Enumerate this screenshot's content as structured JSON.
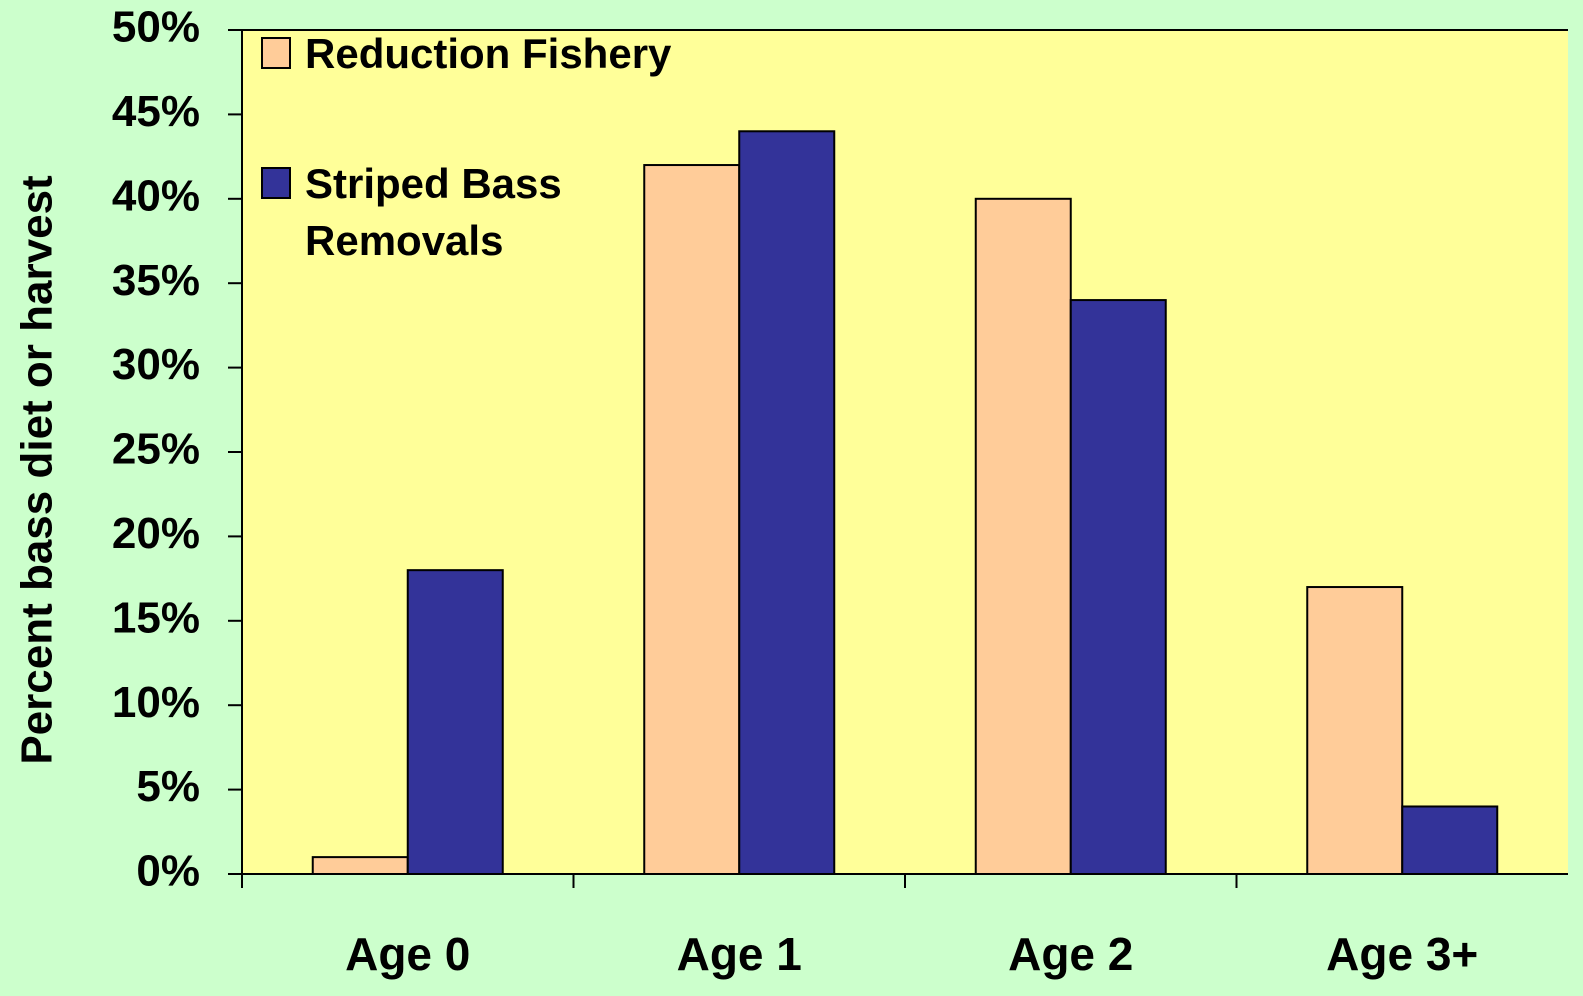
{
  "chart_data": {
    "type": "bar",
    "y_label": "Percent bass diet or harvest",
    "categories": [
      "Age 0",
      "Age 1",
      "Age 2",
      "Age 3+"
    ],
    "series": [
      {
        "name": "Reduction Fishery",
        "color": "#ffcc99",
        "values": [
          1,
          42,
          40,
          17
        ]
      },
      {
        "name": "Striped Bass Removals",
        "color": "#333399",
        "values": [
          18,
          44,
          34,
          4
        ]
      }
    ],
    "ylim": [
      0,
      50
    ],
    "yticks": [
      {
        "value": 0,
        "label": "0%"
      },
      {
        "value": 5,
        "label": "5%"
      },
      {
        "value": 10,
        "label": "10%"
      },
      {
        "value": 15,
        "label": "15%"
      },
      {
        "value": 20,
        "label": "20%"
      },
      {
        "value": 25,
        "label": "25%"
      },
      {
        "value": 30,
        "label": "30%"
      },
      {
        "value": 35,
        "label": "35%"
      },
      {
        "value": 40,
        "label": "40%"
      },
      {
        "value": 45,
        "label": "45%"
      },
      {
        "value": 50,
        "label": "50%"
      }
    ],
    "grid": false,
    "legend": "top-left"
  }
}
